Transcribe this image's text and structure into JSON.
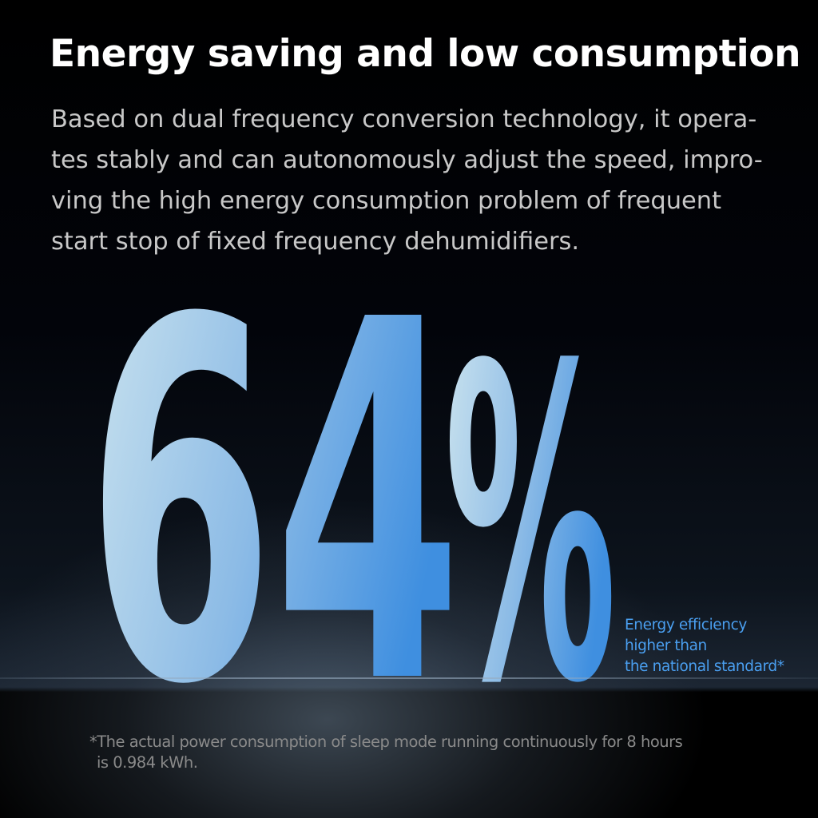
{
  "header": {
    "title": "Energy saving and low consumption"
  },
  "description": {
    "lines": [
      "Based on dual frequency conversion technology, it opera-",
      "tes stably and can autonomously adjust the speed, impro-",
      "ving the high energy consumption problem of frequent",
      "start stop of fixed frequency dehumidifiers."
    ]
  },
  "stat": {
    "value": "64%",
    "digits": "64",
    "symbol": "%",
    "gradient_start_color": "#cfe6ef",
    "gradient_end_color": "#3f8fe0"
  },
  "callout": {
    "lines": [
      "Energy efficiency",
      "higher than",
      "the national standard*"
    ],
    "color": "#4a9ff0"
  },
  "footnote": {
    "lines": [
      "*The actual power consumption of sleep mode running continuously for 8 hours",
      "is 0.984 kWh."
    ]
  }
}
